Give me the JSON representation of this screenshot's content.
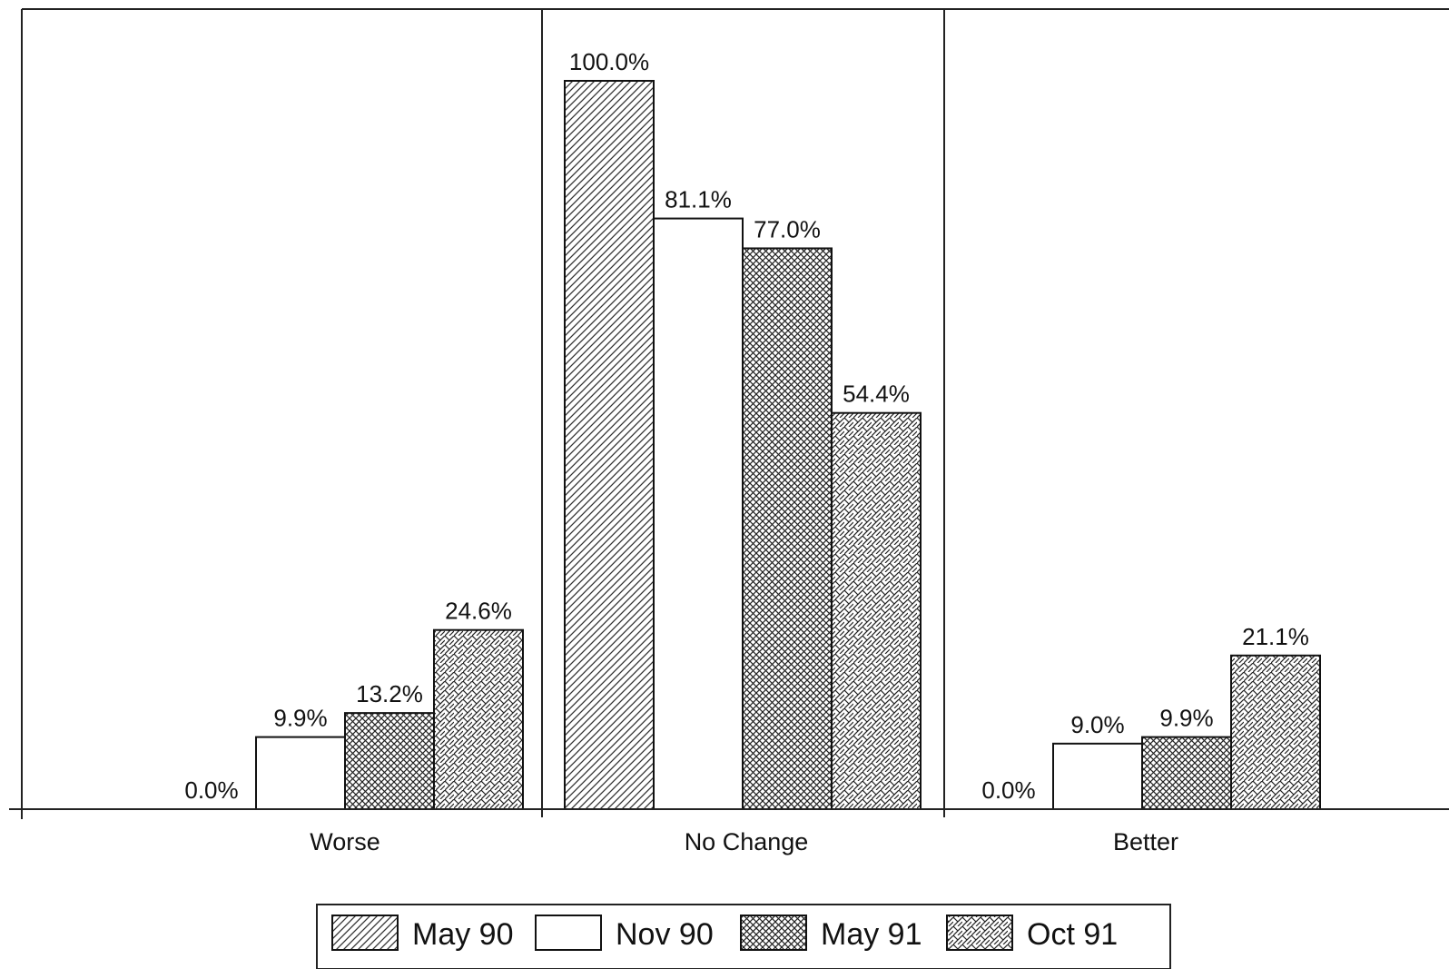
{
  "chart_data": {
    "type": "bar",
    "categories": [
      "Worse",
      "No Change",
      "Better"
    ],
    "series": [
      {
        "name": "May 90",
        "values": [
          0.0,
          100.0,
          0.0
        ],
        "labels": [
          "0.0%",
          "100.0%",
          "0.0%"
        ],
        "pattern": "diagonal-hatch"
      },
      {
        "name": "Nov 90",
        "values": [
          9.9,
          81.1,
          9.0
        ],
        "labels": [
          "9.9%",
          "81.1%",
          "9.0%"
        ],
        "pattern": "none"
      },
      {
        "name": "May 91",
        "values": [
          13.2,
          77.0,
          9.9
        ],
        "labels": [
          "13.2%",
          "77.0%",
          "9.9%"
        ],
        "pattern": "crosshatch"
      },
      {
        "name": "Oct 91",
        "values": [
          24.6,
          54.4,
          21.1
        ],
        "labels": [
          "24.6%",
          "54.4%",
          "21.1%"
        ],
        "pattern": "brick-hatch"
      }
    ],
    "ylim": [
      0,
      100
    ],
    "title": "",
    "xlabel": "",
    "ylabel": "",
    "grid": false,
    "legend_position": "bottom-center",
    "colors": {
      "ink": "#111111",
      "background": "#ffffff"
    }
  }
}
